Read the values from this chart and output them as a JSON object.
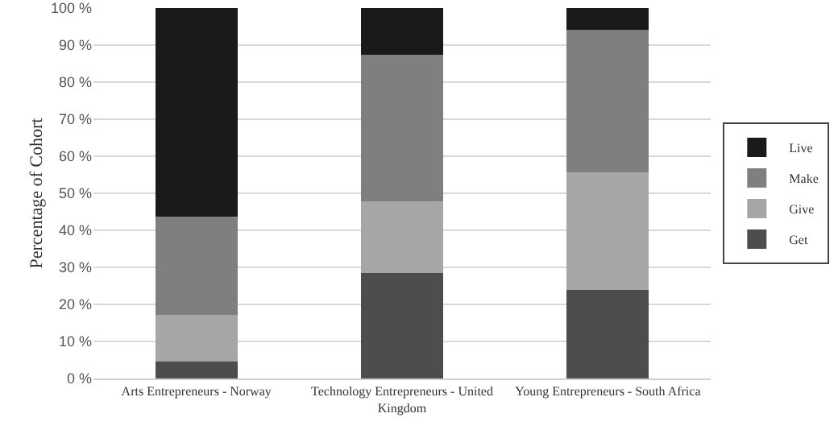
{
  "chart_data": {
    "type": "bar",
    "stacked": true,
    "ylabel": "Percentage of Cohort",
    "categories": [
      "Arts Entrepreneurs - Norway",
      "Technology Entrepreneurs - United Kingdom",
      "Young Entrepreneurs - South Africa"
    ],
    "series": [
      {
        "name": "Get",
        "color": "#4d4d4d",
        "values": [
          4.5,
          28.5,
          23.9
        ]
      },
      {
        "name": "Give",
        "color": "#a6a6a6",
        "values": [
          12.7,
          19.4,
          31.7
        ]
      },
      {
        "name": "Make",
        "color": "#7f7f7f",
        "values": [
          26.6,
          39.5,
          38.6
        ]
      },
      {
        "name": "Live",
        "color": "#1a1a1a",
        "values": [
          56.2,
          12.6,
          5.8
        ]
      }
    ],
    "ylim": [
      0,
      100
    ],
    "yticks": [
      {
        "value": 0,
        "label": "0 %"
      },
      {
        "value": 10,
        "label": "10 %"
      },
      {
        "value": 20,
        "label": "20 %"
      },
      {
        "value": 30,
        "label": "30 %"
      },
      {
        "value": 40,
        "label": "40 %"
      },
      {
        "value": 50,
        "label": "50 %"
      },
      {
        "value": 60,
        "label": "60 %"
      },
      {
        "value": 70,
        "label": "70 %"
      },
      {
        "value": 80,
        "label": "80 %"
      },
      {
        "value": 90,
        "label": "90 %"
      },
      {
        "value": 100,
        "label": "100 %"
      }
    ],
    "grid": "y",
    "legend": "right"
  }
}
